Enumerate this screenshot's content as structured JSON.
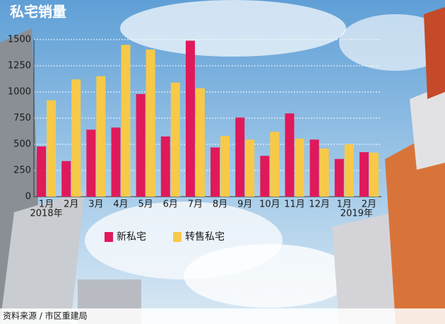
{
  "chart_data": {
    "type": "bar",
    "title": "私宅销量",
    "categories": [
      "1月",
      "2月",
      "3月",
      "4月",
      "5月",
      "6月",
      "7月",
      "8月",
      "9月",
      "10月",
      "11月",
      "12月",
      "1月",
      "2月"
    ],
    "annotations": [
      "2018年",
      "2019年"
    ],
    "series": [
      {
        "name": "新私宅",
        "color": "#e0195a",
        "values": [
          480,
          340,
          640,
          660,
          980,
          575,
          1490,
          470,
          755,
          390,
          795,
          545,
          360,
          425
        ]
      },
      {
        "name": "转售私宅",
        "color": "#f7c948",
        "values": [
          920,
          1120,
          1150,
          1450,
          1405,
          1090,
          1035,
          580,
          545,
          620,
          555,
          460,
          500,
          420
        ]
      }
    ],
    "ylim": [
      0,
      1500
    ],
    "yticks": [
      0,
      250,
      500,
      750,
      1000,
      1250,
      1500
    ],
    "grid": true,
    "source": "资料来源 / 市区重建局"
  }
}
